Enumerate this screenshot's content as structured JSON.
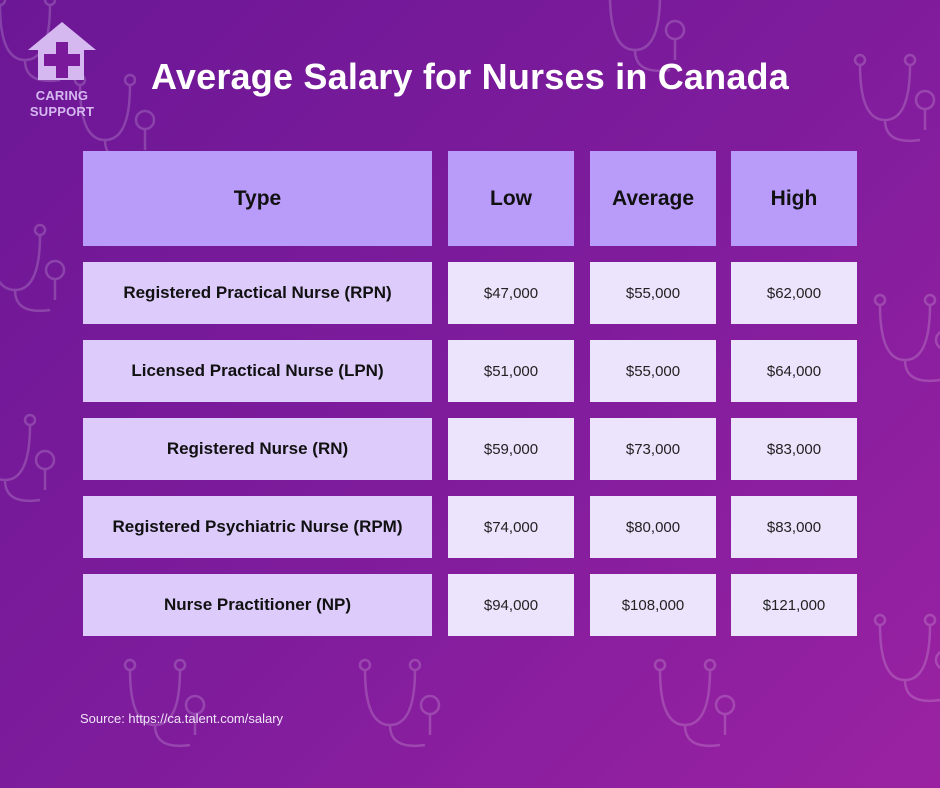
{
  "logo": {
    "text_line1": "CARING",
    "text_line2": "SUPPORT"
  },
  "title": "Average Salary for Nurses in Canada",
  "colors": {
    "background": "#7e1c9c",
    "header": "#b99bfa",
    "type_cell": "#dccbfb",
    "value_cell": "#ece3fc"
  },
  "chart_data": {
    "type": "table",
    "title": "Average Salary for Nurses in Canada",
    "columns": [
      "Type",
      "Low",
      "Average",
      "High"
    ],
    "rows": [
      [
        "Registered Practical Nurse (RPN)",
        "$47,000",
        "$55,000",
        "$62,000"
      ],
      [
        "Licensed Practical Nurse (LPN)",
        "$51,000",
        "$55,000",
        "$64,000"
      ],
      [
        "Registered Nurse (RN)",
        "$59,000",
        "$73,000",
        "$83,000"
      ],
      [
        "Registered Psychiatric Nurse (RPM)",
        "$74,000",
        "$80,000",
        "$83,000"
      ],
      [
        "Nurse Practitioner (NP)",
        "$94,000",
        "$108,000",
        "$121,000"
      ]
    ]
  },
  "source": "Source: https://ca.talent.com/salary"
}
